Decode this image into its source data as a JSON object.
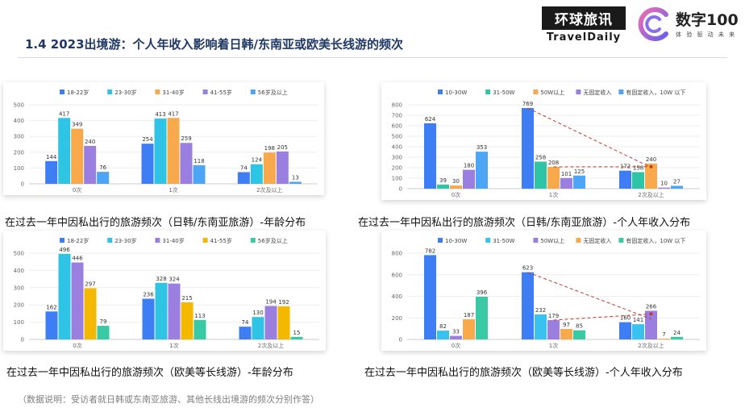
{
  "header": {
    "title": "1.4 2023出境游：个人年收入影响着日韩/东南亚或欧美长线游的频次",
    "logo1_cn": "环球旅讯",
    "logo1_en": "TravelDaily",
    "logo2_text": "数字100",
    "logo2_sub": "体 验 驱 动 未 来"
  },
  "note": "（数据说明：受访者就日韩或东南亚旅游、其他长线出境游的频次分别作答）",
  "chart_data": [
    {
      "type": "bar",
      "caption": "在过去一年中因私出行的旅游频次（日韩/东南亚旅游）-年龄分布",
      "categories": [
        "0次",
        "1次",
        "2次及以上"
      ],
      "ylim": [
        0,
        500
      ],
      "yticks": [
        0,
        100,
        200,
        300,
        400,
        500
      ],
      "colors": [
        "#3d7ef5",
        "#2ec4e6",
        "#f7a94b",
        "#9b7fe0",
        "#4da6f5"
      ],
      "series": [
        {
          "name": "18-22岁",
          "values": [
            144,
            254,
            74
          ]
        },
        {
          "name": "23-30岁",
          "values": [
            417,
            413,
            124
          ]
        },
        {
          "name": "31-40岁",
          "values": [
            349,
            417,
            198
          ]
        },
        {
          "name": "41-55岁",
          "values": [
            240,
            259,
            205
          ]
        },
        {
          "name": "56岁及以上",
          "values": [
            76,
            118,
            13
          ]
        }
      ],
      "legend": "top",
      "trend": false
    },
    {
      "type": "bar",
      "caption": "在过去一年中因私出行的旅游频次（日韩/东南亚旅游）-个人年收入分布",
      "categories": [
        "0次",
        "1次",
        "2次及以上"
      ],
      "ylim": [
        0,
        800
      ],
      "yticks": [
        0,
        100,
        200,
        300,
        400,
        500,
        600,
        700,
        800
      ],
      "colors": [
        "#3d7ef5",
        "#2ec4a6",
        "#f7a94b",
        "#9b7fe0",
        "#4da6f5"
      ],
      "series": [
        {
          "name": "10-30W",
          "values": [
            624,
            769,
            172
          ]
        },
        {
          "name": "31-50W",
          "values": [
            39,
            258,
            158
          ]
        },
        {
          "name": "50W以上",
          "values": [
            30,
            208,
            240
          ]
        },
        {
          "name": "无固定收入",
          "values": [
            180,
            101,
            10
          ]
        },
        {
          "name": "有固定收入，10W 以下",
          "values": [
            353,
            125,
            27
          ]
        }
      ],
      "legend": "top",
      "trend": true
    },
    {
      "type": "bar",
      "caption": "在过去一年中因私出行的旅游频次（欧美等长线游）-年龄分布",
      "categories": [
        "0次",
        "1次",
        "2次及以上"
      ],
      "ylim": [
        0,
        500
      ],
      "yticks": [
        0,
        100,
        200,
        300,
        400,
        500
      ],
      "colors": [
        "#3d7ef5",
        "#2ec4e6",
        "#9b7fe0",
        "#f5b800",
        "#39c9a5"
      ],
      "series": [
        {
          "name": "18-22岁",
          "values": [
            162,
            236,
            74
          ]
        },
        {
          "name": "23-30岁",
          "values": [
            496,
            328,
            130
          ]
        },
        {
          "name": "31-40岁",
          "values": [
            446,
            324,
            194
          ]
        },
        {
          "name": "41-55岁",
          "values": [
            297,
            215,
            192
          ]
        },
        {
          "name": "56岁及以上",
          "values": [
            79,
            113,
            15
          ]
        }
      ],
      "legend": "top",
      "trend": false
    },
    {
      "type": "bar",
      "caption": "在过去一年中因私出行的旅游频次（欧美等长线游）-个人年收入分布",
      "categories": [
        "0次",
        "1次",
        "2次及以上"
      ],
      "ylim": [
        0,
        800
      ],
      "yticks": [
        0,
        200,
        400,
        600,
        800
      ],
      "colors": [
        "#3d7ef5",
        "#39c2f0",
        "#9b7fe0",
        "#f7a94b",
        "#39c9a5"
      ],
      "series": [
        {
          "name": "10-30W",
          "values": [
            782,
            623,
            160
          ]
        },
        {
          "name": "31-50W",
          "values": [
            82,
            232,
            141
          ]
        },
        {
          "name": "50W以上",
          "values": [
            33,
            179,
            266
          ]
        },
        {
          "name": "无固定收入",
          "values": [
            187,
            97,
            7
          ]
        },
        {
          "name": "有固定收入，10W 以下",
          "values": [
            396,
            85,
            24
          ]
        }
      ],
      "legend": "top",
      "trend": true
    }
  ]
}
